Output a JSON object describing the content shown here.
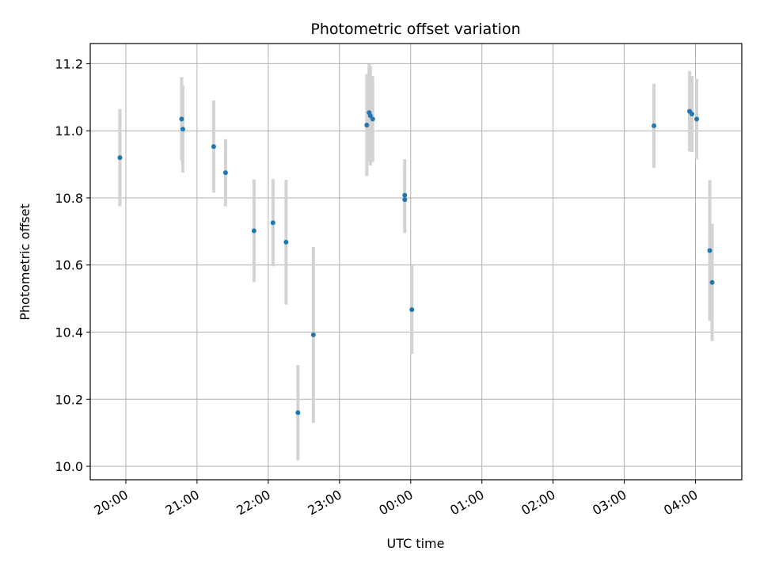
{
  "chart_data": {
    "type": "scatter",
    "title": "Photometric offset variation",
    "xlabel": "UTC time",
    "ylabel": "Photometric offset",
    "x_unit": "UTC date-time",
    "xlim": [
      "2020-01-01T19:30",
      "2020-01-02T04:39"
    ],
    "ylim": [
      9.96,
      11.26
    ],
    "x_ticks": [
      {
        "t": "2020-01-01T20:00",
        "label": "20:00"
      },
      {
        "t": "2020-01-01T21:00",
        "label": "21:00"
      },
      {
        "t": "2020-01-01T22:00",
        "label": "22:00"
      },
      {
        "t": "2020-01-01T23:00",
        "label": "23:00"
      },
      {
        "t": "2020-01-02T00:00",
        "label": "00:00"
      },
      {
        "t": "2020-01-02T01:00",
        "label": "01:00"
      },
      {
        "t": "2020-01-02T02:00",
        "label": "02:00"
      },
      {
        "t": "2020-01-02T03:00",
        "label": "03:00"
      },
      {
        "t": "2020-01-02T04:00",
        "label": "04:00"
      }
    ],
    "y_ticks": [
      10.0,
      10.2,
      10.4,
      10.6,
      10.8,
      11.0,
      11.2
    ],
    "y_tick_labels": [
      "10.0",
      "10.2",
      "10.4",
      "10.6",
      "10.8",
      "11.0",
      "11.2"
    ],
    "grid": true,
    "colors": {
      "point": "#1f77b4",
      "errorbar": "#d3d3d3",
      "grid": "#b0b0b0"
    },
    "points": [
      {
        "t": "2020-01-01T19:55",
        "y": 10.92,
        "err": 0.145
      },
      {
        "t": "2020-01-01T20:47",
        "y": 11.035,
        "err": 0.125
      },
      {
        "t": "2020-01-01T20:48",
        "y": 11.005,
        "err": 0.13
      },
      {
        "t": "2020-01-01T21:14",
        "y": 10.953,
        "err": 0.137
      },
      {
        "t": "2020-01-01T21:24",
        "y": 10.875,
        "err": 0.1
      },
      {
        "t": "2020-01-01T21:48",
        "y": 10.702,
        "err": 0.153
      },
      {
        "t": "2020-01-01T22:04",
        "y": 10.726,
        "err": 0.13
      },
      {
        "t": "2020-01-01T22:15",
        "y": 10.668,
        "err": 0.186
      },
      {
        "t": "2020-01-01T22:25",
        "y": 10.16,
        "err": 0.142
      },
      {
        "t": "2020-01-01T22:38",
        "y": 10.392,
        "err": 0.262
      },
      {
        "t": "2020-01-01T23:23",
        "y": 11.017,
        "err": 0.152
      },
      {
        "t": "2020-01-01T23:25",
        "y": 11.054,
        "err": 0.145
      },
      {
        "t": "2020-01-01T23:26",
        "y": 11.045,
        "err": 0.148
      },
      {
        "t": "2020-01-01T23:28",
        "y": 11.035,
        "err": 0.128
      },
      {
        "t": "2020-01-01T23:55",
        "y": 10.808,
        "err": 0.107
      },
      {
        "t": "2020-01-01T23:55",
        "y": 10.795,
        "err": 0.1
      },
      {
        "t": "2020-01-02T00:01",
        "y": 10.467,
        "err": 0.132
      },
      {
        "t": "2020-01-02T03:25",
        "y": 11.015,
        "err": 0.125
      },
      {
        "t": "2020-01-02T03:55",
        "y": 11.058,
        "err": 0.12
      },
      {
        "t": "2020-01-02T03:57",
        "y": 11.05,
        "err": 0.113
      },
      {
        "t": "2020-01-02T04:01",
        "y": 11.035,
        "err": 0.12
      },
      {
        "t": "2020-01-02T04:12",
        "y": 10.643,
        "err": 0.21
      },
      {
        "t": "2020-01-02T04:14",
        "y": 10.548,
        "err": 0.175
      }
    ]
  }
}
